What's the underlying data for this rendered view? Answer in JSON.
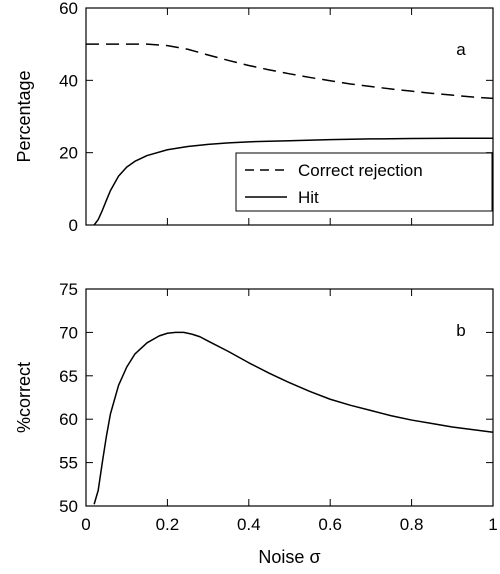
{
  "chart_data": [
    {
      "type": "line",
      "panel_label": "a",
      "ylabel": "Percentage",
      "xlim": [
        0,
        1
      ],
      "ylim": [
        0,
        60
      ],
      "yticks": [
        0,
        20,
        40,
        60
      ],
      "xtick_labels_shown": false,
      "grid": false,
      "legend": {
        "placement": "lower-right",
        "entries": [
          {
            "name": "Correct rejection",
            "style": "dashed"
          },
          {
            "name": "Hit",
            "style": "solid"
          }
        ]
      },
      "series": [
        {
          "name": "Correct rejection",
          "style": "dashed",
          "x": [
            0,
            0.05,
            0.1,
            0.15,
            0.2,
            0.25,
            0.3,
            0.35,
            0.4,
            0.45,
            0.5,
            0.55,
            0.6,
            0.65,
            0.7,
            0.75,
            0.8,
            0.85,
            0.9,
            0.95,
            1.0
          ],
          "y": [
            50.0,
            50.0,
            50.0,
            50.0,
            49.6,
            48.6,
            47.0,
            45.5,
            44.1,
            42.9,
            41.8,
            40.8,
            39.9,
            39.0,
            38.3,
            37.6,
            37.0,
            36.4,
            35.9,
            35.4,
            35.0
          ]
        },
        {
          "name": "Hit",
          "style": "solid",
          "x": [
            0.02,
            0.03,
            0.04,
            0.05,
            0.06,
            0.08,
            0.1,
            0.12,
            0.15,
            0.2,
            0.25,
            0.3,
            0.35,
            0.4,
            0.5,
            0.6,
            0.7,
            0.8,
            0.9,
            1.0
          ],
          "y": [
            0,
            1.5,
            4.0,
            6.8,
            9.5,
            13.5,
            16.0,
            17.6,
            19.2,
            20.8,
            21.7,
            22.3,
            22.7,
            23.0,
            23.3,
            23.6,
            23.8,
            23.9,
            24.0,
            24.0
          ]
        }
      ]
    },
    {
      "type": "line",
      "panel_label": "b",
      "xlabel": "Noise σ",
      "ylabel": "%correct",
      "xlim": [
        0,
        1
      ],
      "ylim": [
        50,
        75
      ],
      "yticks": [
        50,
        55,
        60,
        65,
        70,
        75
      ],
      "xticks": [
        0,
        0.2,
        0.4,
        0.6,
        0.8,
        1
      ],
      "xtick_labels": [
        "0",
        "0.2",
        "0.4",
        "0.6",
        "0.8",
        "1"
      ],
      "grid": false,
      "series": [
        {
          "name": "",
          "style": "solid",
          "x": [
            0.02,
            0.03,
            0.04,
            0.05,
            0.06,
            0.08,
            0.1,
            0.12,
            0.15,
            0.18,
            0.2,
            0.22,
            0.24,
            0.26,
            0.28,
            0.3,
            0.35,
            0.4,
            0.45,
            0.5,
            0.55,
            0.6,
            0.65,
            0.7,
            0.75,
            0.8,
            0.85,
            0.9,
            0.95,
            1.0
          ],
          "y": [
            50.2,
            51.8,
            55.0,
            58.0,
            60.6,
            63.9,
            66.0,
            67.5,
            68.8,
            69.6,
            69.9,
            70.0,
            70.0,
            69.8,
            69.5,
            69.0,
            67.8,
            66.5,
            65.3,
            64.2,
            63.2,
            62.3,
            61.6,
            61.0,
            60.4,
            59.9,
            59.5,
            59.1,
            58.8,
            58.5
          ]
        }
      ]
    }
  ]
}
